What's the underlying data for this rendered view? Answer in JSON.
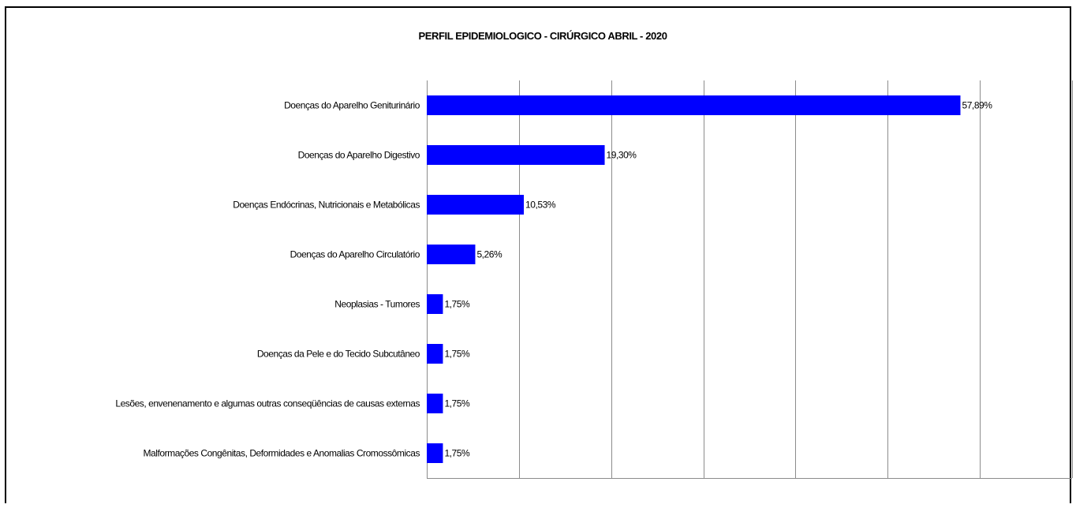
{
  "chart_data": {
    "type": "bar",
    "orientation": "horizontal",
    "title": "PERFIL EPIDEMIOLOGICO - CIRÚRGICO ABRIL - 2020",
    "categories": [
      "Doenças do Aparelho Geniturinário",
      "Doenças do Aparelho Digestivo",
      "Doenças Endócrinas, Nutricionais e Metabólicas",
      "Doenças do Aparelho Circulatório",
      "Neoplasias - Tumores",
      "Doenças da Pele e do Tecido Subcutâneo",
      "Lesões, envenenamento e algumas outras conseqüências de causas externas",
      "Malformações Congênitas, Deformidades e Anomalias Cromossômicas"
    ],
    "values": [
      57.89,
      19.3,
      10.53,
      5.26,
      1.75,
      1.75,
      1.75,
      1.75
    ],
    "value_labels": [
      "57,89%",
      "19,30%",
      "10,53%",
      "5,26%",
      "1,75%",
      "1,75%",
      "1,75%",
      "1,75%"
    ],
    "xlim": [
      0,
      70
    ],
    "grid": true,
    "bar_color": "#0000FF",
    "xlabel": "",
    "ylabel": ""
  }
}
